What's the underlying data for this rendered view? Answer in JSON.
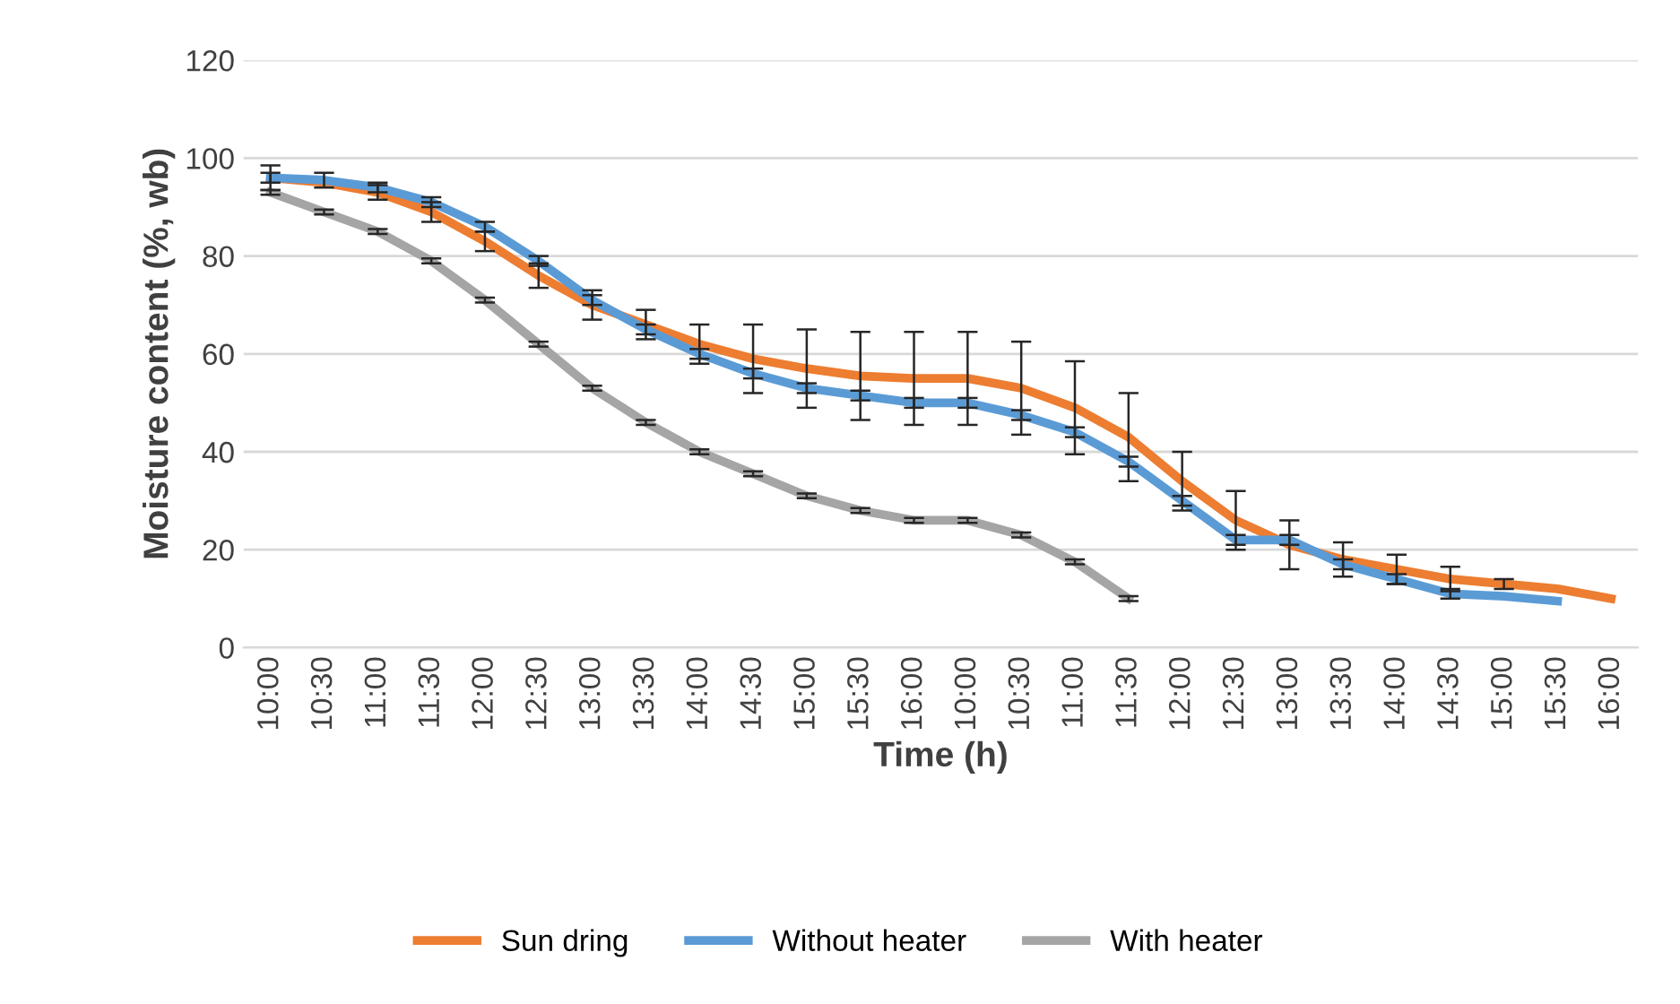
{
  "chart_data": {
    "type": "line",
    "xlabel": "Time (h)",
    "ylabel": "Moisture content (%, wb)",
    "categories": [
      "10:00",
      "10:30",
      "11:00",
      "11:30",
      "12:00",
      "12:30",
      "13:00",
      "13:30",
      "14:00",
      "14:30",
      "15:00",
      "15:30",
      "16:00",
      "10:00",
      "10:30",
      "11:00",
      "11:30",
      "12:00",
      "12:30",
      "13:00",
      "13:30",
      "14:00",
      "14:30",
      "15:00",
      "15:30",
      "16:00"
    ],
    "series": [
      {
        "name": "Sun dring",
        "color": "#ed7d31",
        "values": [
          96,
          95,
          93,
          89,
          83,
          76,
          70,
          66,
          62,
          59,
          57,
          55.5,
          55,
          55,
          53,
          49,
          43,
          34,
          26,
          21,
          18,
          16,
          14,
          13,
          12,
          10
        ],
        "errors": [
          2.5,
          null,
          1.5,
          2,
          2,
          2.5,
          3,
          3,
          4,
          7,
          8,
          9,
          9.5,
          9.5,
          9.5,
          9.5,
          9,
          6,
          6,
          5,
          3.5,
          3,
          2.5,
          1,
          null,
          null
        ]
      },
      {
        "name": "Without heater",
        "color": "#5b9bd5",
        "values": [
          96,
          95.5,
          94,
          91,
          86,
          79,
          71,
          65,
          60,
          56,
          53,
          51.5,
          50,
          50,
          47.5,
          44,
          38,
          30,
          22,
          22,
          17,
          14,
          11,
          10.5,
          9.5,
          null
        ],
        "errors": [
          1,
          1.5,
          1,
          1,
          1,
          1,
          1,
          1,
          1,
          1,
          1,
          1,
          1,
          1,
          1,
          1,
          1,
          1,
          1,
          1,
          1,
          1,
          1,
          null,
          null,
          null
        ]
      },
      {
        "name": "With heater",
        "color": "#a5a5a5",
        "values": [
          93,
          89,
          85,
          79,
          71,
          62,
          53,
          46,
          40,
          35.5,
          31,
          28,
          26,
          26,
          23,
          17.5,
          10,
          null,
          null,
          null,
          null,
          null,
          null,
          null,
          null,
          null
        ],
        "errors": [
          0.5,
          0.5,
          0.5,
          0.5,
          0.5,
          0.5,
          0.5,
          0.5,
          0.5,
          0.5,
          0.5,
          0.5,
          0.5,
          0.5,
          0.5,
          0.5,
          0.5,
          null,
          null,
          null,
          null,
          null,
          null,
          null,
          null,
          null
        ]
      }
    ],
    "ylim": [
      0,
      120
    ],
    "yticks": [
      0,
      20,
      40,
      60,
      80,
      100,
      120
    ],
    "grid": "y",
    "legend": "bottom",
    "marker": "none",
    "line_style": "solid"
  }
}
